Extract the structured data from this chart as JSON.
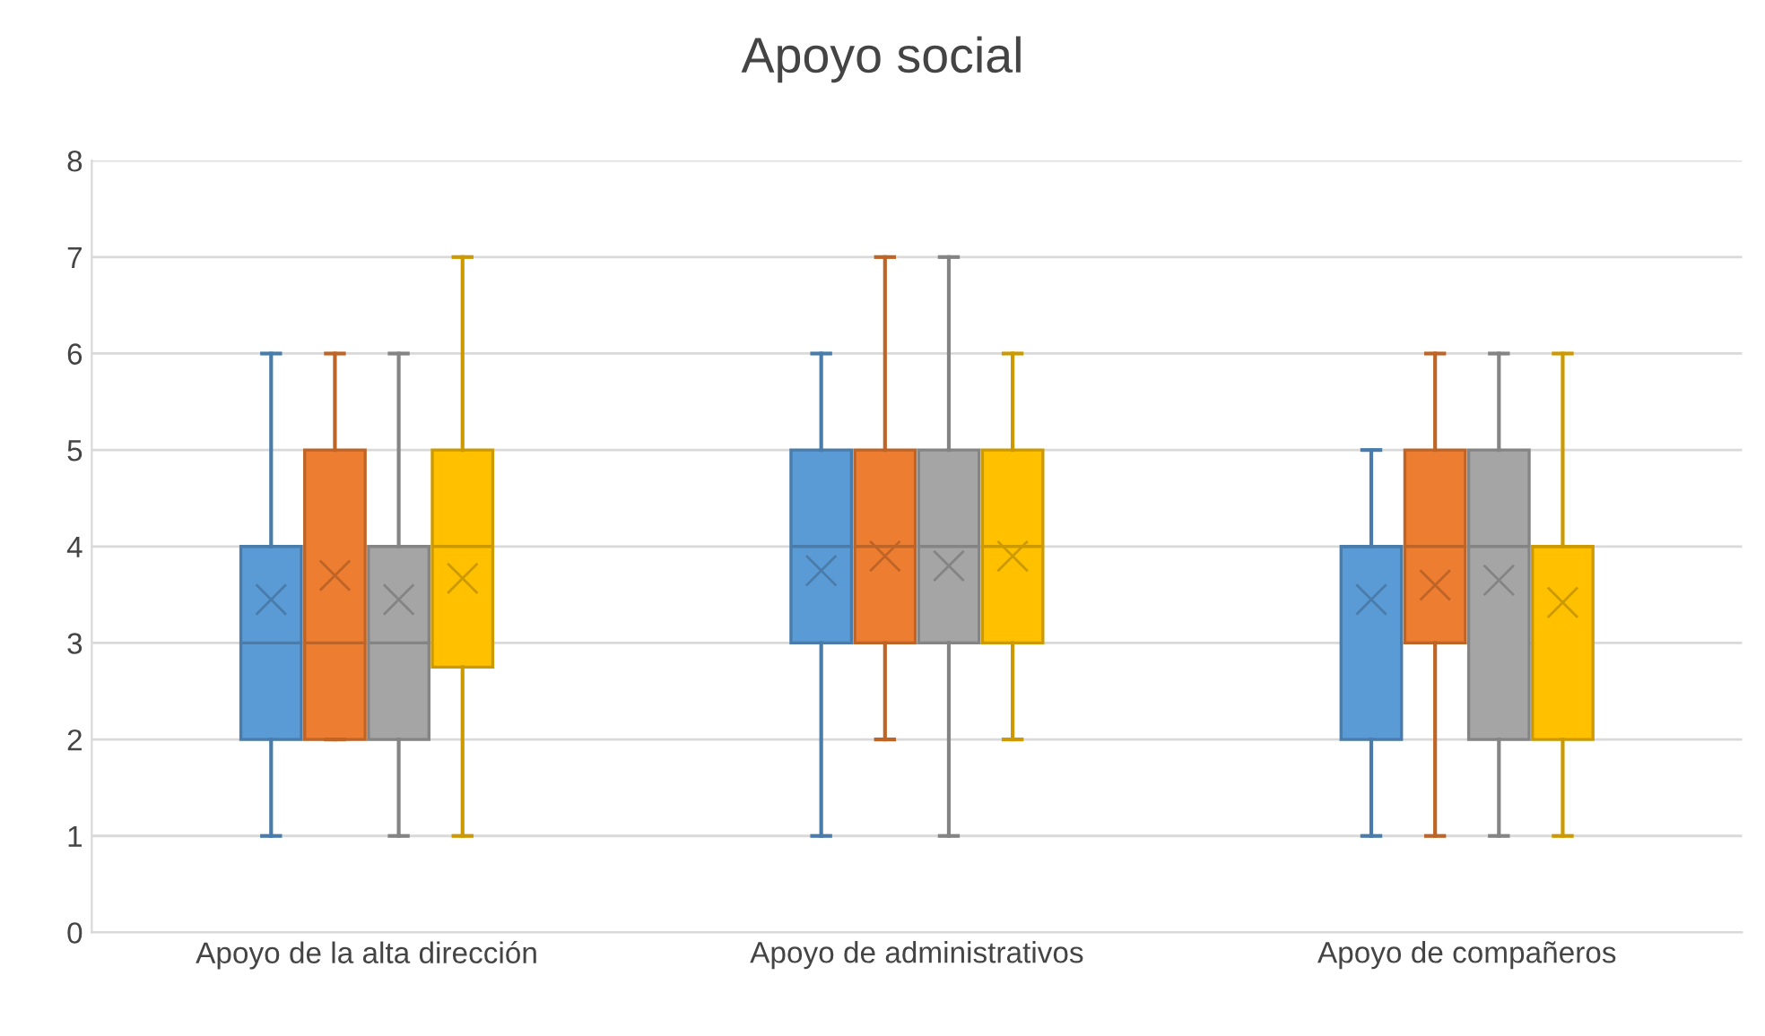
{
  "chart_data": {
    "type": "box",
    "title": "Apoyo social",
    "categories": [
      "Apoyo de la alta dirección",
      "Apoyo de administrativos",
      "Apoyo de compañeros"
    ],
    "ylim": [
      0,
      8
    ],
    "yticks": [
      0,
      1,
      2,
      3,
      4,
      5,
      6,
      7,
      8
    ],
    "grid": "y",
    "marker": "cross",
    "series": [
      {
        "color": "#5b9bd5",
        "boxes": [
          {
            "low": 1,
            "q1": 2,
            "median": 3,
            "q3": 4,
            "high": 6,
            "mean": 3.45
          },
          {
            "low": 1,
            "q1": 3,
            "median": 4,
            "q3": 5,
            "high": 6,
            "mean": 3.75
          },
          {
            "low": 1,
            "q1": 2,
            "median": 4,
            "q3": 4,
            "high": 5,
            "mean": 3.45
          }
        ]
      },
      {
        "color": "#ed7d31",
        "boxes": [
          {
            "low": 2,
            "q1": 2,
            "median": 3,
            "q3": 5,
            "high": 6,
            "mean": 3.7
          },
          {
            "low": 2,
            "q1": 3,
            "median": 4,
            "q3": 5,
            "high": 7,
            "mean": 3.9
          },
          {
            "low": 1,
            "q1": 3,
            "median": 4,
            "q3": 5,
            "high": 6,
            "mean": 3.6
          }
        ]
      },
      {
        "color": "#a5a5a5",
        "boxes": [
          {
            "low": 1,
            "q1": 2,
            "median": 3,
            "q3": 4,
            "high": 6,
            "mean": 3.45
          },
          {
            "low": 1,
            "q1": 3,
            "median": 4,
            "q3": 5,
            "high": 7,
            "mean": 3.8
          },
          {
            "low": 1,
            "q1": 2,
            "median": 4,
            "q3": 5,
            "high": 6,
            "mean": 3.65
          }
        ]
      },
      {
        "color": "#ffc000",
        "boxes": [
          {
            "low": 1,
            "q1": 2.75,
            "median": 4,
            "q3": 5,
            "high": 7,
            "mean": 3.67
          },
          {
            "low": 2,
            "q1": 3,
            "median": 4,
            "q3": 5,
            "high": 6,
            "mean": 3.9
          },
          {
            "low": 1,
            "q1": 2,
            "median": 4,
            "q3": 4,
            "high": 6,
            "mean": 3.42
          }
        ]
      }
    ]
  }
}
